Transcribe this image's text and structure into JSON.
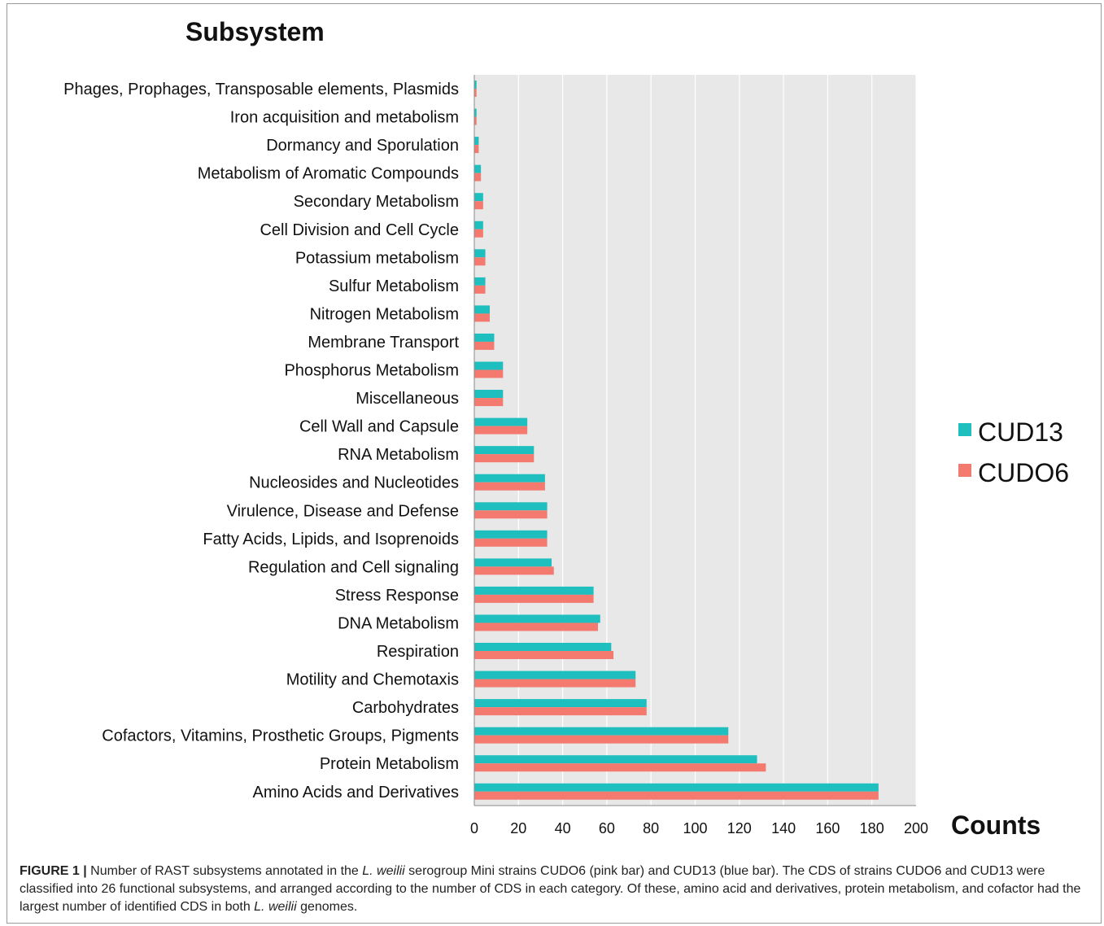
{
  "chart_data": {
    "type": "bar",
    "orientation": "horizontal",
    "title": "Subsystem",
    "xlabel": "Counts",
    "xlim": [
      0,
      200
    ],
    "xticks": [
      0,
      20,
      40,
      60,
      80,
      100,
      120,
      140,
      160,
      180,
      200
    ],
    "grid": "vertical",
    "legend_position": "right",
    "categories": [
      "Phages, Prophages, Transposable elements, Plasmids",
      "Iron acquisition and metabolism",
      "Dormancy and Sporulation",
      "Metabolism of Aromatic Compounds",
      "Secondary Metabolism",
      "Cell Division and Cell Cycle",
      "Potassium metabolism",
      "Sulfur Metabolism",
      "Nitrogen Metabolism",
      "Membrane Transport",
      "Phosphorus Metabolism",
      "Miscellaneous",
      "Cell Wall and Capsule",
      "RNA Metabolism",
      "Nucleosides and Nucleotides",
      "Virulence, Disease and Defense",
      "Fatty Acids, Lipids, and Isoprenoids",
      "Regulation and Cell signaling",
      "Stress Response",
      "DNA Metabolism",
      "Respiration",
      "Motility and Chemotaxis",
      "Carbohydrates",
      "Cofactors, Vitamins, Prosthetic Groups, Pigments",
      "Protein Metabolism",
      "Amino Acids and Derivatives"
    ],
    "series": [
      {
        "name": "CUD13",
        "color": "#1fbfbf",
        "values": [
          1,
          1,
          2,
          3,
          4,
          4,
          5,
          5,
          7,
          9,
          13,
          13,
          24,
          27,
          32,
          33,
          33,
          35,
          54,
          57,
          62,
          73,
          78,
          115,
          128,
          183
        ]
      },
      {
        "name": "CUDO6",
        "color": "#f47a6f",
        "values": [
          1,
          1,
          2,
          3,
          4,
          4,
          5,
          5,
          7,
          9,
          13,
          13,
          24,
          27,
          32,
          33,
          33,
          36,
          54,
          56,
          63,
          73,
          78,
          115,
          132,
          183
        ]
      }
    ],
    "plot_background": "#e8e8e8"
  },
  "caption": {
    "figure_label": "FIGURE 1 |",
    "parts": [
      {
        "text": " Number of RAST subsystems annotated in the ",
        "italic": false
      },
      {
        "text": "L. weilii",
        "italic": true
      },
      {
        "text": " serogroup Mini strains CUDO6 (pink bar) and CUD13 (blue bar). The CDS of strains CUDO6 and CUD13 were classified into 26 functional subsystems, and arranged according to the number of CDS in each category. Of these, amino acid and derivatives, protein metabolism, and cofactor had the largest number of identified CDS in both ",
        "italic": false
      },
      {
        "text": "L. weilii",
        "italic": true
      },
      {
        "text": " genomes.",
        "italic": false
      }
    ]
  }
}
